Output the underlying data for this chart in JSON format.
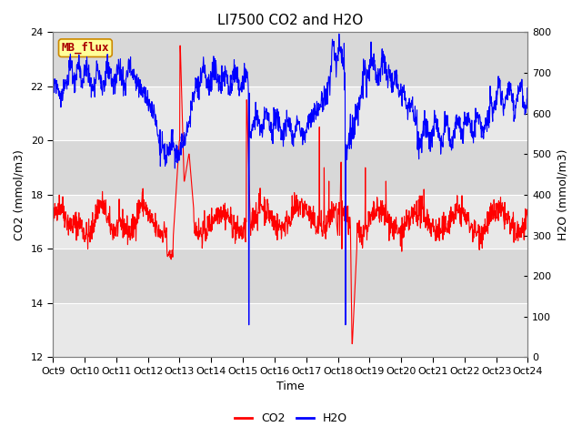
{
  "title": "LI7500 CO2 and H2O",
  "xlabel": "Time",
  "ylabel_left": "CO2 (mmol/m3)",
  "ylabel_right": "H2O (mmol/m3)",
  "ylim_left": [
    12,
    24
  ],
  "ylim_right": [
    0,
    800
  ],
  "yticks_left": [
    12,
    14,
    16,
    18,
    20,
    22,
    24
  ],
  "yticks_right": [
    0,
    100,
    200,
    300,
    400,
    500,
    600,
    700,
    800
  ],
  "xtick_labels": [
    "Oct 9",
    "Oct 10",
    "Oct 11",
    "Oct 12",
    "Oct 13",
    "Oct 14",
    "Oct 15",
    "Oct 16",
    "Oct 17",
    "Oct 18",
    "Oct 19",
    "Oct 20",
    "Oct 21",
    "Oct 22",
    "Oct 23",
    "Oct 24"
  ],
  "co2_color": "#FF0000",
  "h2o_color": "#0000FF",
  "bg_light": "#E8E8E8",
  "bg_dark": "#D8D8D8",
  "legend_label": "MB_flux",
  "legend_box_color": "#FFFF99",
  "legend_box_border": "#CC8800",
  "title_fontsize": 11,
  "label_fontsize": 9,
  "tick_fontsize": 8,
  "linewidth": 0.8
}
